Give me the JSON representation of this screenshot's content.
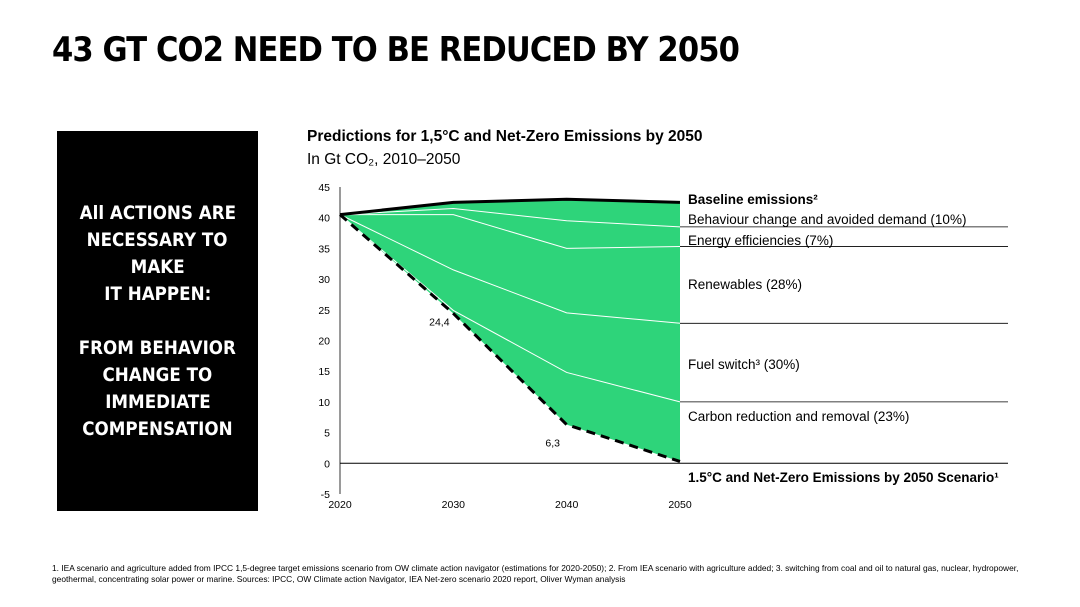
{
  "slide": {
    "title": "43 GT CO2 NEED TO BE REDUCED BY 2050",
    "side_box": {
      "lines_top": [
        "All ACTIONS ARE",
        "NECESSARY TO",
        "MAKE",
        "IT HAPPEN:"
      ],
      "lines_bottom": [
        "FROM BEHAVIOR",
        "CHANGE TO",
        "IMMEDIATE",
        "COMPENSATION"
      ]
    },
    "footnote": "1. IEA scenario and agriculture added from IPCC 1,5-degree target emissions scenario from OW climate action navigator (estimations for 2020-2050); 2. From IEA scenario with agriculture added; 3. switching from coal and oil to natural gas, nuclear, hydropower, geothermal, concentrating solar power or marine. Sources: IPCC, OW Climate action Navigator, IEA Net-zero scenario 2020 report, Oliver Wyman analysis"
  },
  "chart_data": {
    "type": "area",
    "title": "Predictions for 1,5°C and Net-Zero Emissions by 2050",
    "subtitle": "In Gt CO₂, 2010–2050",
    "x": [
      2020,
      2030,
      2040,
      2050
    ],
    "x_ticks": [
      "2020",
      "2030",
      "2040",
      "2050"
    ],
    "y_ticks": [
      "45",
      "40",
      "35",
      "30",
      "25",
      "20",
      "15",
      "10",
      "5",
      "0",
      "-5"
    ],
    "ylim": [
      -5,
      45
    ],
    "baseline": {
      "name": "Baseline emissions²",
      "values": [
        40.5,
        42.5,
        43,
        42.5
      ]
    },
    "scenario": {
      "name": "1.5°C and Net-Zero Emissions by 2050 Scenario¹",
      "values": [
        40.5,
        24.4,
        6.3,
        0.3
      ]
    },
    "boundaries": [
      [
        40.5,
        42.5,
        43,
        42.5
      ],
      [
        40.5,
        41.5,
        39.5,
        38.5
      ],
      [
        40.5,
        40.5,
        35,
        35.3
      ],
      [
        40.5,
        31.5,
        24.5,
        22.8
      ],
      [
        40.5,
        24.9,
        14.8,
        10
      ],
      [
        40.5,
        24.4,
        6.3,
        0.3
      ]
    ],
    "wedges": [
      {
        "name": "Behaviour change and avoided demand (10%)"
      },
      {
        "name": "Energy efficiencies (7%)"
      },
      {
        "name": "Renewables (28%)"
      },
      {
        "name": "Fuel switch³ (30%)"
      },
      {
        "name": "Carbon reduction and removal (23%)"
      }
    ],
    "annotations": [
      {
        "x": 2030,
        "y": 24.4,
        "text": "24,4"
      },
      {
        "x": 2040,
        "y": 6.3,
        "text": "6,3"
      }
    ],
    "colors": {
      "fill": "#2ed47a",
      "divider": "#ffffff",
      "baseline": "#000000",
      "scenario": "#000000"
    }
  }
}
